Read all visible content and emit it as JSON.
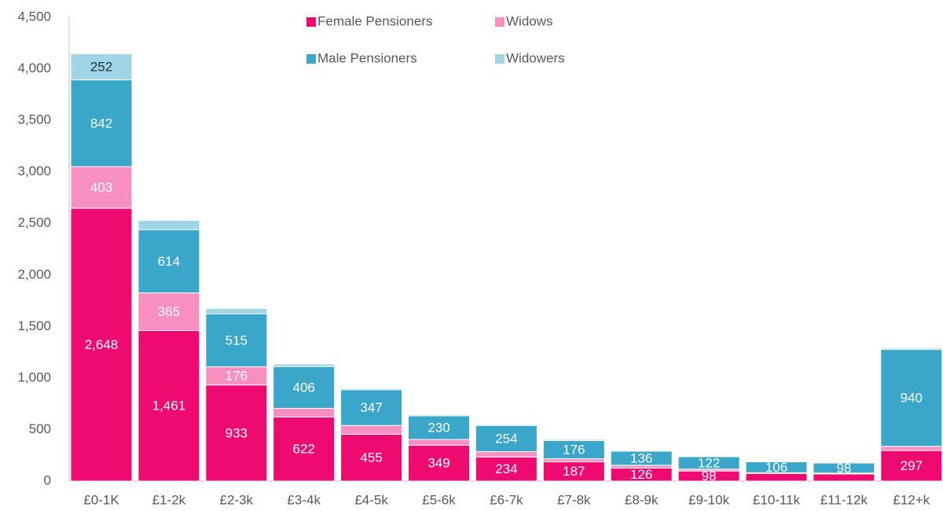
{
  "chart_data": {
    "type": "stacked_bar",
    "categories": [
      "£0-1K",
      "£1-2k",
      "£2-3k",
      "£3-4k",
      "£4-5k",
      "£5-6k",
      "£6-7k",
      "£7-8k",
      "£8-9k",
      "£9-10k",
      "£10-11k",
      "£11-12k",
      "£12+k"
    ],
    "series": [
      {
        "name": "Female Pensioners",
        "color": "#ee0a6e",
        "label_color": "#ffffff",
        "values": [
          2648,
          1461,
          933,
          622,
          455,
          349,
          234,
          187,
          126,
          98,
          75,
          70,
          297
        ],
        "value_labels": [
          "2,648",
          "1,461",
          "933",
          "622",
          "455",
          "349",
          "234",
          "187",
          "126",
          "98",
          null,
          null,
          "297"
        ]
      },
      {
        "name": "Widows",
        "color": "#f78fc0",
        "label_color": "#ffffff",
        "values": [
          403,
          365,
          176,
          84,
          85,
          55,
          52,
          30,
          28,
          18,
          6,
          8,
          40
        ],
        "value_labels": [
          "403",
          "365",
          "176",
          null,
          null,
          null,
          null,
          null,
          null,
          null,
          null,
          null,
          null
        ]
      },
      {
        "name": "Male Pensioners",
        "color": "#3aa6c9",
        "label_color": "#ffffff",
        "values": [
          842,
          614,
          515,
          406,
          347,
          230,
          254,
          176,
          136,
          122,
          106,
          98,
          940
        ],
        "value_labels": [
          "842",
          "614",
          "515",
          "406",
          "347",
          "230",
          "254",
          "176",
          "136",
          "122",
          "106",
          "98",
          "940"
        ]
      },
      {
        "name": "Widowers",
        "color": "#9fd5e6",
        "label_color": "#1b3340",
        "values": [
          252,
          90,
          51,
          25,
          12,
          11,
          10,
          12,
          10,
          7,
          3,
          4,
          13
        ],
        "value_labels": [
          "252",
          null,
          null,
          null,
          null,
          null,
          null,
          null,
          null,
          null,
          null,
          null,
          null
        ]
      }
    ],
    "ylim": [
      0,
      4500
    ],
    "yticks": [
      0,
      500,
      {
        "value": 1000,
        "label": "1,000"
      },
      {
        "value": 1500,
        "label": "1,500"
      },
      {
        "value": 2000,
        "label": "2,000"
      },
      {
        "value": 2500,
        "label": "2,500"
      },
      {
        "value": 3000,
        "label": "3,000"
      },
      {
        "value": 3500,
        "label": "3,500"
      },
      {
        "value": 4000,
        "label": "4,000"
      },
      {
        "value": 4500,
        "label": "4,500"
      }
    ],
    "legend": "top"
  }
}
